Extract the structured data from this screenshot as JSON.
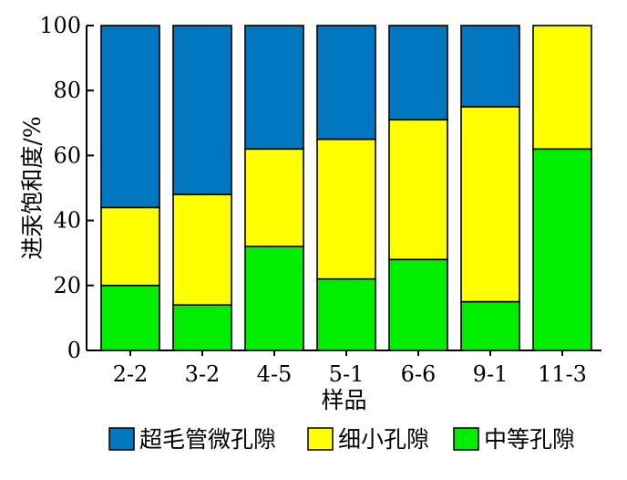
{
  "chart_data": {
    "type": "bar",
    "stacked": true,
    "percent": true,
    "categories": [
      "2-2",
      "3-2",
      "4-5",
      "5-1",
      "6-6",
      "9-1",
      "11-3"
    ],
    "series": [
      {
        "name": "中等孔隙",
        "color": "#00ee00",
        "values": [
          20,
          14,
          32,
          22,
          28,
          15,
          62
        ]
      },
      {
        "name": "细小孔隙",
        "color": "#ffff00",
        "values": [
          24,
          34,
          30,
          43,
          43,
          60,
          38
        ]
      },
      {
        "name": "超毛管微孔隙",
        "color": "#0077c0",
        "values": [
          56,
          52,
          38,
          35,
          29,
          25,
          0
        ]
      }
    ],
    "legend_order": [
      2,
      1,
      0
    ],
    "legend_position": "bottom",
    "xlabel": "样品",
    "ylabel": "进汞饱和度/%",
    "ylim": [
      0,
      100
    ],
    "yticks": [
      0,
      20,
      40,
      60,
      80,
      100
    ],
    "grid": false
  }
}
